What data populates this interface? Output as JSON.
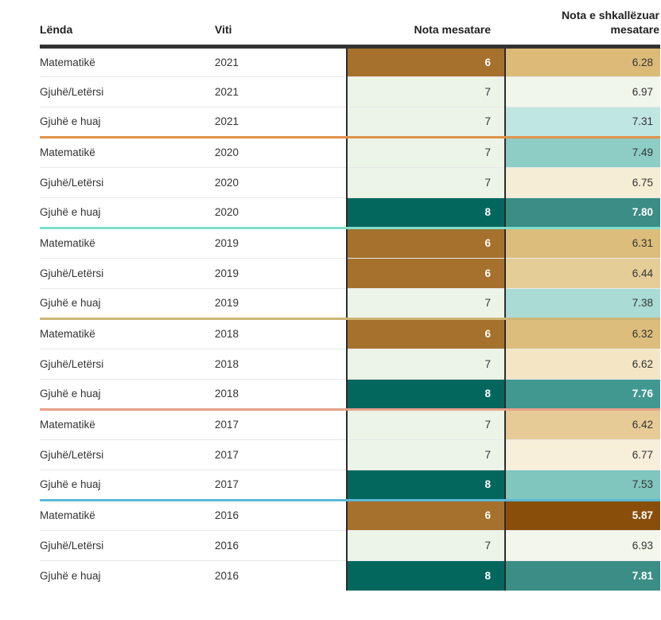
{
  "table": {
    "headers": {
      "subject": "Lënda",
      "year": "Viti",
      "grade": "Nota mesatare",
      "scaled_line1": "Nota e shkallëzuar",
      "scaled_line2": "mesatare"
    },
    "year_separator_colors": [
      "#e0924a",
      "#7fe0c9",
      "#cdb676",
      "#e8a08a",
      "#5bb8d8"
    ]
  },
  "chart_data": {
    "type": "table",
    "columns": [
      "Lënda",
      "Viti",
      "Nota mesatare",
      "Nota e shkallëzuar mesatare"
    ],
    "rows": [
      {
        "subject": "Matematikë",
        "year": "2021",
        "grade": "6",
        "scaled": "6.28",
        "grade_bg": "#a6712c",
        "grade_fg": "#ffffff",
        "grade_bold": true,
        "scaled_bg": "#dcbb79",
        "scaled_fg": "#333333",
        "scaled_bold": false
      },
      {
        "subject": "Gjuhë/Letërsi",
        "year": "2021",
        "grade": "7",
        "scaled": "6.97",
        "grade_bg": "#ecf4e8",
        "grade_fg": "#333333",
        "grade_bold": false,
        "scaled_bg": "#f1f6ea",
        "scaled_fg": "#333333",
        "scaled_bold": false
      },
      {
        "subject": "Gjuhë e huaj",
        "year": "2021",
        "grade": "7",
        "scaled": "7.31",
        "grade_bg": "#ecf4e8",
        "grade_fg": "#333333",
        "grade_bold": false,
        "scaled_bg": "#c0e6e1",
        "scaled_fg": "#333333",
        "scaled_bold": false
      },
      {
        "subject": "Matematikë",
        "year": "2020",
        "grade": "7",
        "scaled": "7.49",
        "grade_bg": "#ecf4e8",
        "grade_fg": "#333333",
        "grade_bold": false,
        "scaled_bg": "#8ecdc5",
        "scaled_fg": "#333333",
        "scaled_bold": false
      },
      {
        "subject": "Gjuhë/Letërsi",
        "year": "2020",
        "grade": "7",
        "scaled": "6.75",
        "grade_bg": "#ecf4e8",
        "grade_fg": "#333333",
        "grade_bold": false,
        "scaled_bg": "#f6edd5",
        "scaled_fg": "#333333",
        "scaled_bold": false
      },
      {
        "subject": "Gjuhë e huaj",
        "year": "2020",
        "grade": "8",
        "scaled": "7.80",
        "grade_bg": "#03675e",
        "grade_fg": "#ffffff",
        "grade_bold": true,
        "scaled_bg": "#3a8e86",
        "scaled_fg": "#ffffff",
        "scaled_bold": true
      },
      {
        "subject": "Matematikë",
        "year": "2019",
        "grade": "6",
        "scaled": "6.31",
        "grade_bg": "#a6712c",
        "grade_fg": "#ffffff",
        "grade_bold": true,
        "scaled_bg": "#dcbd7b",
        "scaled_fg": "#333333",
        "scaled_bold": false
      },
      {
        "subject": "Gjuhë/Letërsi",
        "year": "2019",
        "grade": "6",
        "scaled": "6.44",
        "grade_bg": "#a6712c",
        "grade_fg": "#ffffff",
        "grade_bold": true,
        "scaled_bg": "#e5cd98",
        "scaled_fg": "#333333",
        "scaled_bold": false
      },
      {
        "subject": "Gjuhë e huaj",
        "year": "2019",
        "grade": "7",
        "scaled": "7.38",
        "grade_bg": "#ecf4e8",
        "grade_fg": "#333333",
        "grade_bold": false,
        "scaled_bg": "#aadbd5",
        "scaled_fg": "#333333",
        "scaled_bold": false
      },
      {
        "subject": "Matematikë",
        "year": "2018",
        "grade": "6",
        "scaled": "6.32",
        "grade_bg": "#a6712c",
        "grade_fg": "#ffffff",
        "grade_bold": true,
        "scaled_bg": "#dcbd7b",
        "scaled_fg": "#333333",
        "scaled_bold": false
      },
      {
        "subject": "Gjuhë/Letërsi",
        "year": "2018",
        "grade": "7",
        "scaled": "6.62",
        "grade_bg": "#ecf4e8",
        "grade_fg": "#333333",
        "grade_bold": false,
        "scaled_bg": "#f4e6c4",
        "scaled_fg": "#333333",
        "scaled_bold": false
      },
      {
        "subject": "Gjuhë e huaj",
        "year": "2018",
        "grade": "8",
        "scaled": "7.76",
        "grade_bg": "#03675e",
        "grade_fg": "#ffffff",
        "grade_bold": true,
        "scaled_bg": "#419891",
        "scaled_fg": "#ffffff",
        "scaled_bold": true
      },
      {
        "subject": "Matematikë",
        "year": "2017",
        "grade": "7",
        "scaled": "6.42",
        "grade_bg": "#ecf4e8",
        "grade_fg": "#333333",
        "grade_bold": false,
        "scaled_bg": "#e6cb96",
        "scaled_fg": "#333333",
        "scaled_bold": false
      },
      {
        "subject": "Gjuhë/Letërsi",
        "year": "2017",
        "grade": "7",
        "scaled": "6.77",
        "grade_bg": "#ecf4e8",
        "grade_fg": "#333333",
        "grade_bold": false,
        "scaled_bg": "#f7efda",
        "scaled_fg": "#333333",
        "scaled_bold": false
      },
      {
        "subject": "Gjuhë e huaj",
        "year": "2017",
        "grade": "8",
        "scaled": "7.53",
        "grade_bg": "#03675e",
        "grade_fg": "#ffffff",
        "grade_bold": true,
        "scaled_bg": "#80c6be",
        "scaled_fg": "#333333",
        "scaled_bold": false
      },
      {
        "subject": "Matematikë",
        "year": "2016",
        "grade": "6",
        "scaled": "5.87",
        "grade_bg": "#a6712c",
        "grade_fg": "#ffffff",
        "grade_bold": true,
        "scaled_bg": "#8a4e0b",
        "scaled_fg": "#ffffff",
        "scaled_bold": true
      },
      {
        "subject": "Gjuhë/Letërsi",
        "year": "2016",
        "grade": "7",
        "scaled": "6.93",
        "grade_bg": "#ecf4e8",
        "grade_fg": "#333333",
        "grade_bold": false,
        "scaled_bg": "#f3f6ea",
        "scaled_fg": "#333333",
        "scaled_bold": false
      },
      {
        "subject": "Gjuhë e huaj",
        "year": "2016",
        "grade": "8",
        "scaled": "7.81",
        "grade_bg": "#03675e",
        "grade_fg": "#ffffff",
        "grade_bold": true,
        "scaled_bg": "#3a8e86",
        "scaled_fg": "#ffffff",
        "scaled_bold": true
      }
    ]
  }
}
